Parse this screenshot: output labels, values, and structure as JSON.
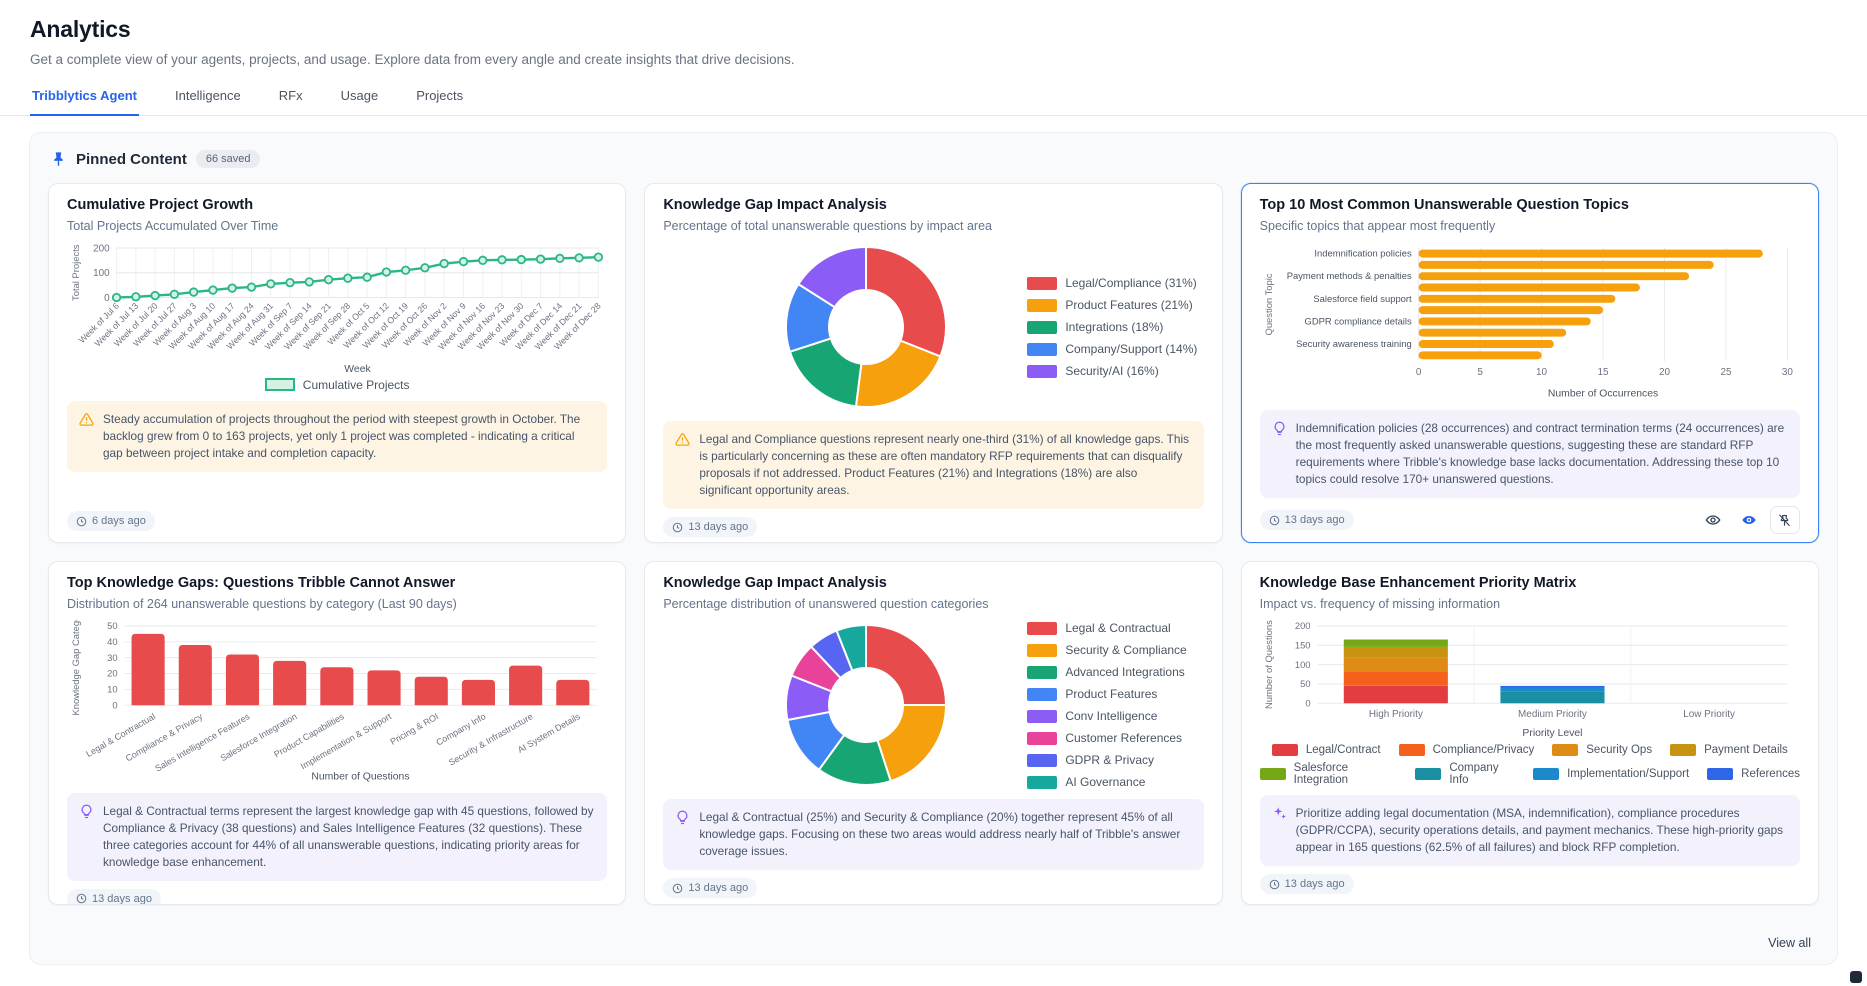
{
  "header": {
    "title": "Analytics",
    "subtitle": "Get a complete view of your agents, projects, and usage. Explore data from every angle and create insights that drive decisions."
  },
  "tabs": [
    {
      "label": "Tribblytics Agent",
      "active": true
    },
    {
      "label": "Intelligence",
      "active": false
    },
    {
      "label": "RFx",
      "active": false
    },
    {
      "label": "Usage",
      "active": false
    },
    {
      "label": "Projects",
      "active": false
    }
  ],
  "pinned": {
    "title": "Pinned Content",
    "badge": "66 saved",
    "view_all": "View all",
    "pin_icon": "pushpin-icon",
    "pin_color": "#2563eb"
  },
  "colors": {
    "accent_blue": "#2563eb",
    "selected_card_border": "#3b82f6",
    "insight_warning_bg": "#fdf4e3",
    "insight_warning_icon": "#f0a50e",
    "insight_idea_bg": "#f3f1fc",
    "insight_idea_icon": "#8b5cf6",
    "panel_bg": "#f8fafc"
  },
  "cards": [
    {
      "title": "Cumulative Project Growth",
      "subtitle": "Total Projects Accumulated Over Time",
      "timestamp": "6 days ago",
      "selected": false,
      "insight": {
        "type": "warning",
        "icon": "warning-triangle-icon",
        "text": "Steady accumulation of projects throughout the period with steepest growth in October. The backlog grew from 0 to 163 projects, yet only 1 project was completed - indicating a critical gap between project intake and completion capacity."
      },
      "chart": {
        "type": "line",
        "xlabel": "Week",
        "ylabel": "Total Projects",
        "ylim": [
          0,
          200
        ],
        "yticks": [
          0,
          100,
          200
        ],
        "grid": true,
        "legend_position": "bottom",
        "categories": [
          "Week of Jul 6",
          "Week of Jul 13",
          "Week of Jul 20",
          "Week of Jul 27",
          "Week of Aug 3",
          "Week of Aug 10",
          "Week of Aug 17",
          "Week of Aug 24",
          "Week of Aug 31",
          "Week of Sep 7",
          "Week of Sep 14",
          "Week of Sep 21",
          "Week of Sep 28",
          "Week of Oct 5",
          "Week of Oct 12",
          "Week of Oct 19",
          "Week of Oct 26",
          "Week of Nov 2",
          "Week of Nov 9",
          "Week of Nov 16",
          "Week of Nov 23",
          "Week of Nov 30",
          "Week of Dec 7",
          "Week of Dec 14",
          "Week of Dec 21",
          "Week of Dec 28"
        ],
        "series": [
          {
            "name": "Cumulative Projects",
            "color": "#2bb783",
            "marker_fill": "#d3f2e3",
            "values": [
              0,
              3,
              8,
              13,
              22,
              30,
              38,
              42,
              55,
              60,
              63,
              72,
              78,
              82,
              103,
              110,
              120,
              137,
              145,
              150,
              152,
              153,
              155,
              158,
              160,
              163
            ]
          }
        ],
        "legend": [
          {
            "label": "Cumulative Projects",
            "color": "#2bb783",
            "fill": "#d3f2e3"
          }
        ]
      }
    },
    {
      "title": "Knowledge Gap Impact Analysis",
      "subtitle": "Percentage of total unanswerable questions by impact area",
      "timestamp": "13 days ago",
      "selected": false,
      "insight": {
        "type": "warning",
        "icon": "warning-triangle-icon",
        "text": "Legal and Compliance questions represent nearly one-third (31%) of all knowledge gaps. This is particularly concerning as these are often mandatory RFP requirements that can disqualify proposals if not addressed. Product Features (21%) and Integrations (18%) are also significant opportunity areas."
      },
      "chart": {
        "type": "donut",
        "legend_position": "right",
        "slices": [
          {
            "label": "Legal/Compliance (31%)",
            "value": 31,
            "color": "#e84b4b"
          },
          {
            "label": "Product Features (21%)",
            "value": 21,
            "color": "#f5a00c"
          },
          {
            "label": "Integrations (18%)",
            "value": 18,
            "color": "#17a673"
          },
          {
            "label": "Company/Support (14%)",
            "value": 14,
            "color": "#4285f4"
          },
          {
            "label": "Security/AI (16%)",
            "value": 16,
            "color": "#8b5cf6"
          }
        ]
      }
    },
    {
      "title": "Top 10 Most Common Unanswerable Question Topics",
      "subtitle": "Specific topics that appear most frequently",
      "timestamp": "13 days ago",
      "selected": true,
      "insight": {
        "type": "idea",
        "icon": "lightbulb-icon",
        "text": "Indemnification policies (28 occurrences) and contract termination terms (24 occurrences) are the most frequently asked unanswerable questions, suggesting these are standard RFP requirements where Tribble's knowledge base lacks documentation. Addressing these top 10 topics could resolve 170+ unanswered questions."
      },
      "actions": [
        {
          "icon": "eye-icon"
        },
        {
          "icon": "colored-eye-icon"
        },
        {
          "icon": "unpin-icon"
        }
      ],
      "chart": {
        "type": "hbar",
        "color": "#f5a00c",
        "xlabel": "Number of Occurrences",
        "ylabel": "Question Topic",
        "xlim": [
          0,
          30
        ],
        "xticks": [
          0,
          5,
          10,
          15,
          20,
          25,
          30
        ],
        "grid": true,
        "categories": [
          "Indemnification policies",
          "",
          "Payment methods & penalties",
          "",
          "Salesforce field support",
          "",
          "GDPR compliance details",
          "",
          "Security awareness training",
          ""
        ],
        "values": [
          28,
          24,
          22,
          18,
          16,
          15,
          14,
          12,
          11,
          10
        ]
      }
    },
    {
      "title": "Top Knowledge Gaps: Questions Tribble Cannot Answer",
      "subtitle": "Distribution of 264 unanswerable questions by category (Last 90 days)",
      "timestamp": "13 days ago",
      "selected": false,
      "insight": {
        "type": "idea",
        "icon": "lightbulb-icon",
        "text": "Legal & Contractual terms represent the largest knowledge gap with 45 questions, followed by Compliance & Privacy (38 questions) and Sales Intelligence Features (32 questions). These three categories account for 44% of all unanswerable questions, indicating priority areas for knowledge base enhancement."
      },
      "chart": {
        "type": "vbar",
        "color": "#e84b4b",
        "xlabel": "Number of Questions",
        "ylabel": "Knowledge Gap Catego",
        "ylim": [
          0,
          50
        ],
        "yticks": [
          0,
          10,
          20,
          30,
          40,
          50
        ],
        "grid": true,
        "categories": [
          "Legal & Contractual",
          "Compliance & Privacy",
          "Sales Intelligence Features",
          "Salesforce Integration",
          "Product Capabilities",
          "Implementation & Support",
          "Pricing & ROI",
          "Company Info",
          "Security & Infrastructure",
          "AI System Details"
        ],
        "values": [
          45,
          38,
          32,
          28,
          24,
          22,
          18,
          16,
          25,
          16
        ]
      }
    },
    {
      "title": "Knowledge Gap Impact Analysis",
      "subtitle": "Percentage distribution of unanswered question categories",
      "timestamp": "13 days ago",
      "selected": false,
      "insight": {
        "type": "idea",
        "icon": "lightbulb-icon",
        "text": "Legal & Contractual (25%) and Security & Compliance (20%) together represent 45% of all knowledge gaps. Focusing on these two areas would address nearly half of Tribble's answer coverage issues."
      },
      "chart": {
        "type": "donut",
        "legend_position": "right",
        "slices": [
          {
            "label": "Legal & Contractual",
            "value": 25,
            "color": "#e84b4b"
          },
          {
            "label": "Security & Compliance",
            "value": 20,
            "color": "#f5a00c"
          },
          {
            "label": "Advanced Integrations",
            "value": 15,
            "color": "#17a673"
          },
          {
            "label": "Product Features",
            "value": 12,
            "color": "#4285f4"
          },
          {
            "label": "Conv Intelligence",
            "value": 9,
            "color": "#8b5cf6"
          },
          {
            "label": "Customer References",
            "value": 7,
            "color": "#e8429b"
          },
          {
            "label": "GDPR & Privacy",
            "value": 6,
            "color": "#5865f2"
          },
          {
            "label": "AI Governance",
            "value": 6,
            "color": "#16a89c"
          }
        ]
      }
    },
    {
      "title": "Knowledge Base Enhancement Priority Matrix",
      "subtitle": "Impact vs. frequency of missing information",
      "timestamp": "13 days ago",
      "selected": false,
      "insight": {
        "type": "sparkle",
        "icon": "sparkles-icon",
        "text": "Prioritize adding legal documentation (MSA, indemnification), compliance procedures (GDPR/CCPA), security operations details, and payment mechanics. These high-priority gaps appear in 165 questions (62.5% of all failures) and block RFP completion."
      },
      "chart": {
        "type": "stacked-bar",
        "xlabel": "Priority Level",
        "ylabel": "Number of Questions",
        "ylim": [
          0,
          200
        ],
        "yticks": [
          0,
          50,
          100,
          150,
          200
        ],
        "grid": true,
        "legend_position": "bottom",
        "categories": [
          "High Priority",
          "Medium Priority",
          "Low Priority"
        ],
        "series": [
          {
            "name": "Legal/Contract",
            "color": "#e23e41",
            "values": [
              45,
              0,
              0
            ]
          },
          {
            "name": "Compliance/Privacy",
            "color": "#f4611d",
            "values": [
              38,
              0,
              0
            ]
          },
          {
            "name": "Security Ops",
            "color": "#df8c17",
            "values": [
              35,
              0,
              0
            ]
          },
          {
            "name": "Payment Details",
            "color": "#c79310",
            "values": [
              28,
              0,
              0
            ]
          },
          {
            "name": "Salesforce Integration",
            "color": "#76a716",
            "values": [
              19,
              0,
              0
            ]
          },
          {
            "name": "Company Info",
            "color": "#1a8fa4",
            "values": [
              0,
              30,
              0
            ]
          },
          {
            "name": "Implementation/Support",
            "color": "#1b89cc",
            "values": [
              0,
              10,
              0
            ]
          },
          {
            "name": "References",
            "color": "#2e66e8",
            "values": [
              0,
              5,
              0
            ]
          }
        ]
      }
    }
  ]
}
